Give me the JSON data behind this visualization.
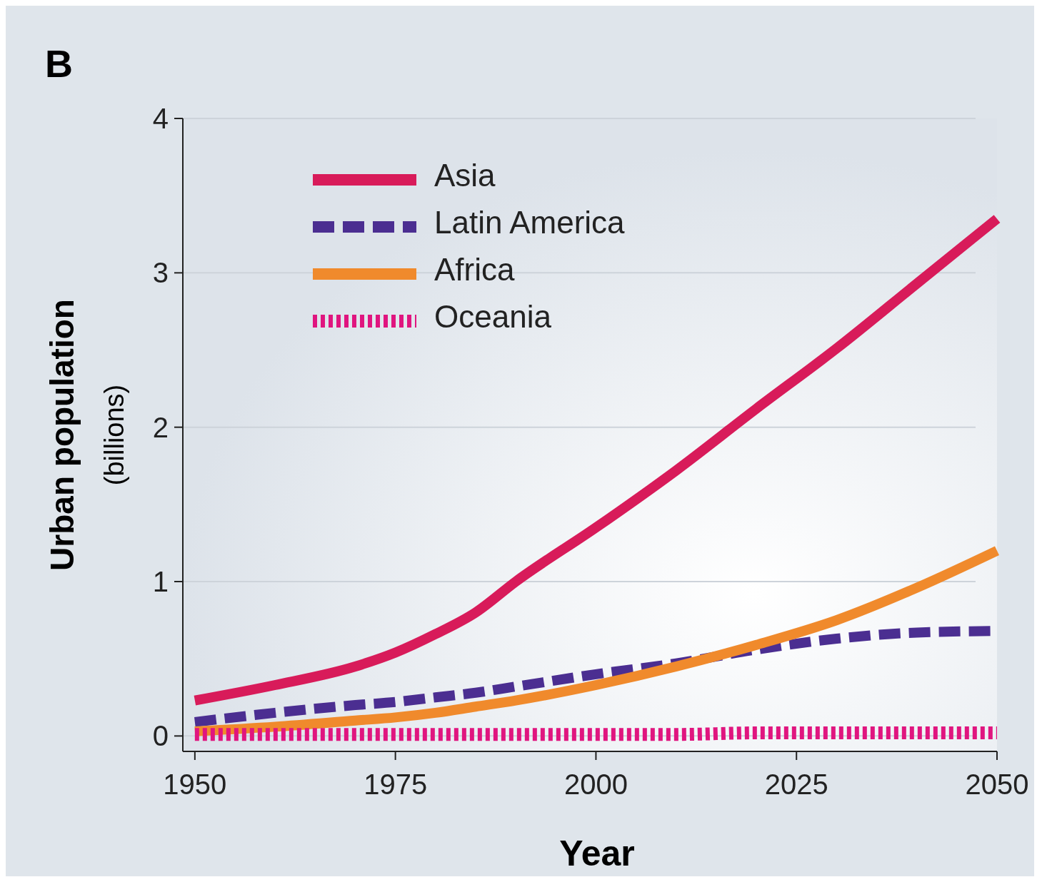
{
  "chart_data": {
    "type": "line",
    "title": "B",
    "xlabel": "Year",
    "ylabel": "Urban population (billions)",
    "x": [
      1950,
      1960,
      1970,
      1975,
      1980,
      1985,
      1990,
      2000,
      2010,
      2020,
      2030,
      2040,
      2050
    ],
    "xlim": [
      1948.5,
      2050
    ],
    "xticks": [
      1950,
      1975,
      2000,
      2025,
      2050
    ],
    "ylim": [
      -0.1,
      4
    ],
    "yticks": [
      0,
      1,
      2,
      3,
      4
    ],
    "grid": "y",
    "legend": "top left",
    "marker": "none",
    "series": [
      {
        "name": "Asia",
        "color": "#d81b5a",
        "line_style": "solid",
        "values": [
          0.23,
          0.33,
          0.45,
          0.54,
          0.66,
          0.8,
          1.0,
          1.35,
          1.72,
          2.12,
          2.51,
          2.93,
          3.35
        ]
      },
      {
        "name": "Latin America",
        "color": "#4b2e91",
        "line_style": "dashed",
        "values": [
          0.09,
          0.15,
          0.2,
          0.22,
          0.25,
          0.28,
          0.32,
          0.4,
          0.47,
          0.56,
          0.63,
          0.67,
          0.68
        ]
      },
      {
        "name": "Africa",
        "color": "#f08a2c",
        "line_style": "solid",
        "values": [
          0.03,
          0.06,
          0.1,
          0.12,
          0.15,
          0.19,
          0.23,
          0.33,
          0.45,
          0.59,
          0.75,
          0.96,
          1.2
        ]
      },
      {
        "name": "Oceania",
        "color": "#e0157f",
        "line_style": "dotted",
        "values": [
          0.01,
          0.01,
          0.01,
          0.01,
          0.01,
          0.01,
          0.01,
          0.01,
          0.01,
          0.02,
          0.02,
          0.02,
          0.02
        ]
      }
    ]
  }
}
